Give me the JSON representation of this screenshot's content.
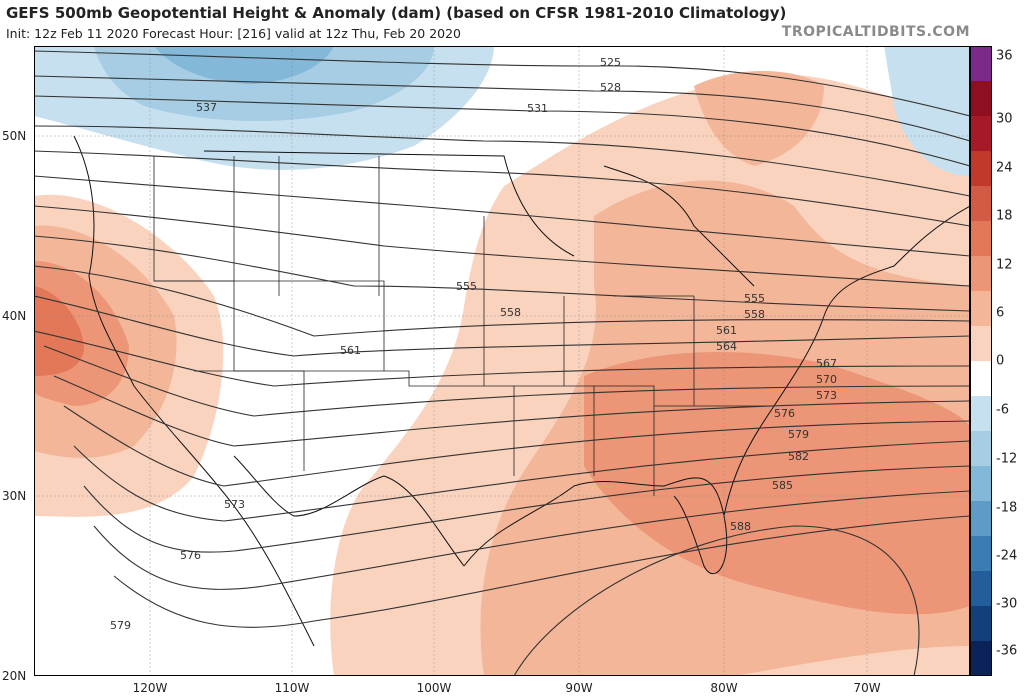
{
  "header": {
    "title": "GEFS 500mb Geopotential Height & Anomaly (dam) (based on CFSR 1981-2010 Climatology)",
    "subtitle": "Init: 12z Feb 11 2020   Forecast Hour: [216]   valid at 12z Thu, Feb 20 2020",
    "credit": "TROPICALTIDBITS.COM"
  },
  "axes": {
    "lat_labels": [
      "50N",
      "40N",
      "30N",
      "20N"
    ],
    "lon_labels": [
      "120W",
      "110W",
      "100W",
      "90W",
      "80W",
      "70W"
    ]
  },
  "colorbar": {
    "labels": [
      "36",
      "30",
      "24",
      "18",
      "12",
      "6",
      "0",
      "-6",
      "-12",
      "-18",
      "-24",
      "-30",
      "-36"
    ],
    "colors": [
      "#7b2a8c",
      "#8e1020",
      "#a51a26",
      "#c0392b",
      "#d35b45",
      "#e27858",
      "#ec9677",
      "#f4b698",
      "#fad3bf",
      "#ffffff",
      "#c7e0ef",
      "#a6cde4",
      "#84b8d8",
      "#5d9cc6",
      "#3b7db3",
      "#225e9a",
      "#133f7a",
      "#0b2358"
    ]
  },
  "contours": {
    "labels": [
      "525",
      "528",
      "531",
      "537",
      "555",
      "558",
      "561",
      "555",
      "558",
      "561",
      "564",
      "567",
      "570",
      "573",
      "576",
      "579",
      "582",
      "585",
      "588",
      "573",
      "576",
      "579"
    ]
  }
}
